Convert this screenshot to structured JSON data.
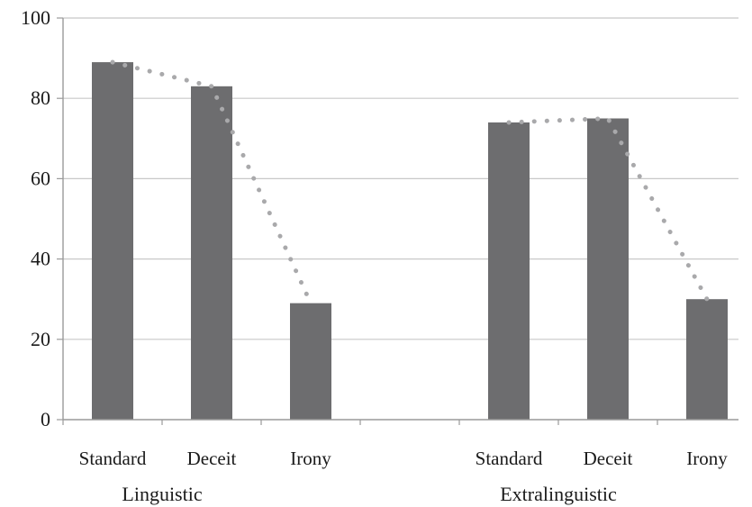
{
  "chart_data": {
    "type": "bar",
    "ylim": [
      0,
      100
    ],
    "yticks": [
      0,
      20,
      40,
      60,
      80,
      100
    ],
    "grid": true,
    "legend": "none",
    "colors": {
      "bar": "#6d6d6f",
      "trend": "#a9a9ab",
      "grid": "#c8c8c8",
      "axis": "#9a9a9a"
    },
    "groups": [
      {
        "label": "Linguistic",
        "categories": [
          "Standard",
          "Deceit",
          "Irony"
        ],
        "values": [
          89,
          83,
          29
        ]
      },
      {
        "label": "Extralinguistic",
        "categories": [
          "Standard",
          "Deceit",
          "Irony"
        ],
        "values": [
          74,
          75,
          30
        ]
      }
    ]
  }
}
